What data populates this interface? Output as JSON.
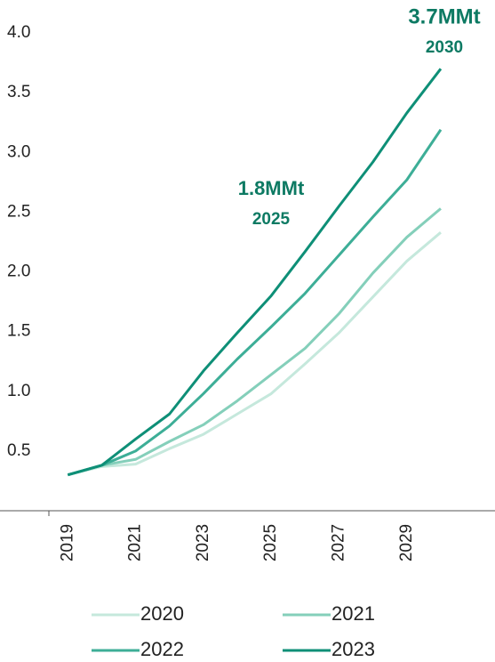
{
  "chart_data": {
    "type": "line",
    "x": [
      2019,
      2020,
      2021,
      2022,
      2023,
      2024,
      2025,
      2026,
      2027,
      2028,
      2029,
      2030
    ],
    "series": [
      {
        "name": "2020",
        "color": "#c5e8dc",
        "values": [
          0.3,
          0.37,
          0.39,
          0.52,
          0.64,
          0.81,
          0.98,
          1.23,
          1.49,
          1.79,
          2.09,
          2.33
        ]
      },
      {
        "name": "2021",
        "color": "#84cfba",
        "values": [
          0.3,
          0.38,
          0.43,
          0.58,
          0.72,
          0.92,
          1.14,
          1.36,
          1.65,
          1.99,
          2.29,
          2.53
        ]
      },
      {
        "name": "2022",
        "color": "#3dae97",
        "values": [
          0.3,
          0.38,
          0.5,
          0.71,
          0.98,
          1.27,
          1.54,
          1.82,
          2.14,
          2.46,
          2.77,
          3.19
        ]
      },
      {
        "name": "2023",
        "color": "#0e8f77",
        "values": [
          0.3,
          0.38,
          0.6,
          0.81,
          1.17,
          1.49,
          1.8,
          2.17,
          2.55,
          2.92,
          3.33,
          3.7
        ]
      }
    ],
    "annotations": [
      {
        "text": "3.7MMt",
        "sub": "2030"
      },
      {
        "text": "1.8MMt",
        "sub": "2025"
      }
    ],
    "xlim": [
      2017,
      2031.6
    ],
    "xticks": [
      2019,
      2021,
      2023,
      2025,
      2027,
      2029
    ],
    "ylim": [
      0,
      4
    ],
    "yticks": [
      0.5,
      {
        "value": 1,
        "label": "1.0"
      },
      1.5,
      {
        "value": 2,
        "label": "2.0"
      },
      2.5,
      {
        "value": 3,
        "label": "3.0"
      },
      3.5,
      {
        "value": 4,
        "label": "4.0"
      }
    ],
    "grid": false
  }
}
